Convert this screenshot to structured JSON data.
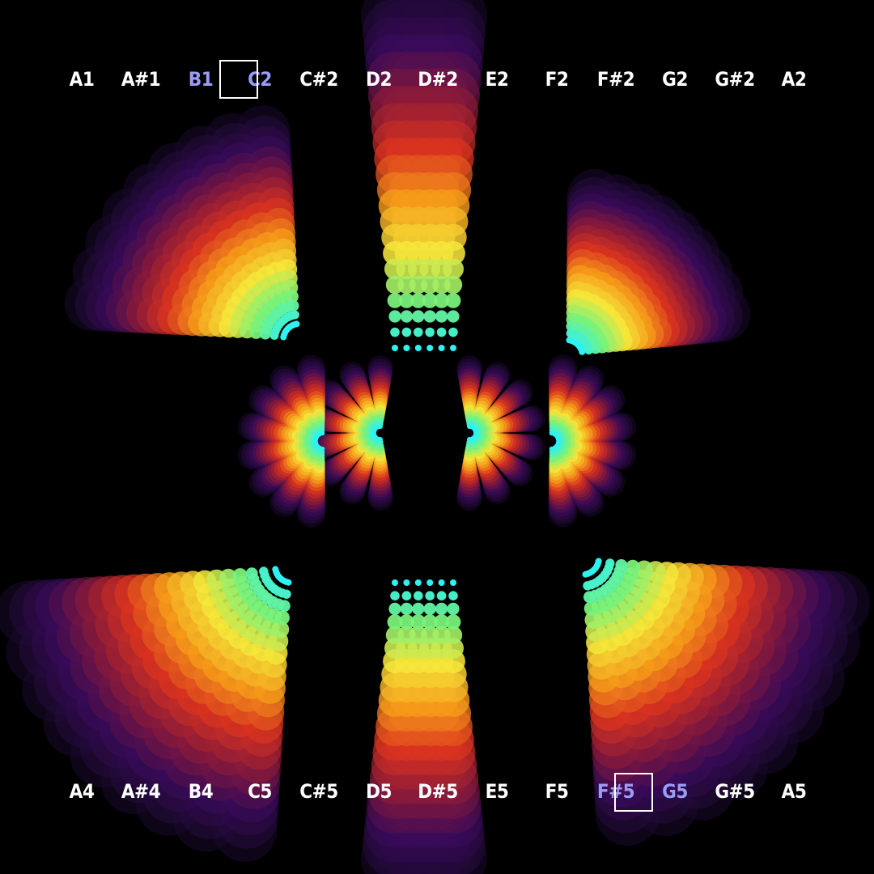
{
  "top_row": {
    "notes": [
      {
        "label": "A1",
        "active": false
      },
      {
        "label": "A#1",
        "active": false
      },
      {
        "label": "B1",
        "active": true
      },
      {
        "label": "C2",
        "active": true
      },
      {
        "label": "C#2",
        "active": false
      },
      {
        "label": "D2",
        "active": false
      },
      {
        "label": "D#2",
        "active": false
      },
      {
        "label": "E2",
        "active": false
      },
      {
        "label": "F2",
        "active": false
      },
      {
        "label": "F#2",
        "active": false
      },
      {
        "label": "G2",
        "active": false
      },
      {
        "label": "G#2",
        "active": false
      },
      {
        "label": "A2",
        "active": false
      }
    ]
  },
  "bottom_row": {
    "notes": [
      {
        "label": "A4",
        "active": false
      },
      {
        "label": "A#4",
        "active": false
      },
      {
        "label": "B4",
        "active": false
      },
      {
        "label": "C5",
        "active": false
      },
      {
        "label": "C#5",
        "active": false
      },
      {
        "label": "D5",
        "active": false
      },
      {
        "label": "D#5",
        "active": false
      },
      {
        "label": "E5",
        "active": false
      },
      {
        "label": "F5",
        "active": false
      },
      {
        "label": "F#5",
        "active": true
      },
      {
        "label": "G5",
        "active": true
      },
      {
        "label": "G#5",
        "active": false
      },
      {
        "label": "A5",
        "active": false
      }
    ]
  },
  "colors": {
    "background": "#000000",
    "note_text": "#ffffff",
    "note_active": "#9a9cf5",
    "selector_border": "#ffffff",
    "visual_palette": [
      "#1a0a2e",
      "#3a0b5a",
      "#8a1a3a",
      "#d9331f",
      "#f59a1a",
      "#f5e63a",
      "#7af27a",
      "#2ef2f2"
    ]
  }
}
